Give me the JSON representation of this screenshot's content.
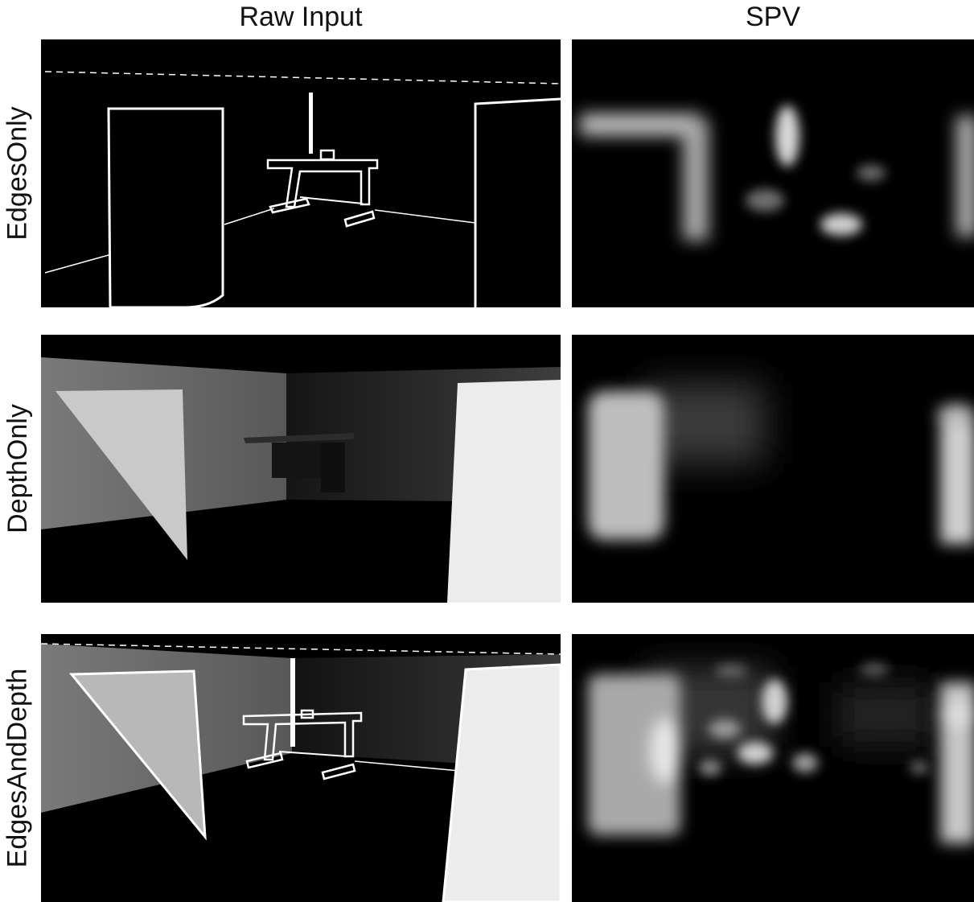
{
  "columns": {
    "raw_input": "Raw Input",
    "spv": "SPV"
  },
  "rows": [
    {
      "label": "EdgesOnly"
    },
    {
      "label": "DepthOnly"
    },
    {
      "label": "EdgesAndDepth"
    }
  ],
  "colors": {
    "background": "#ffffff",
    "panel_background": "#000000",
    "edge_line": "#ffffff",
    "left_wall_depth": "#6e6e6e",
    "right_wall_depth": "#2a2a2a",
    "near_pillar": "#eeeeee",
    "far_pillar": "#c8c8c8"
  }
}
